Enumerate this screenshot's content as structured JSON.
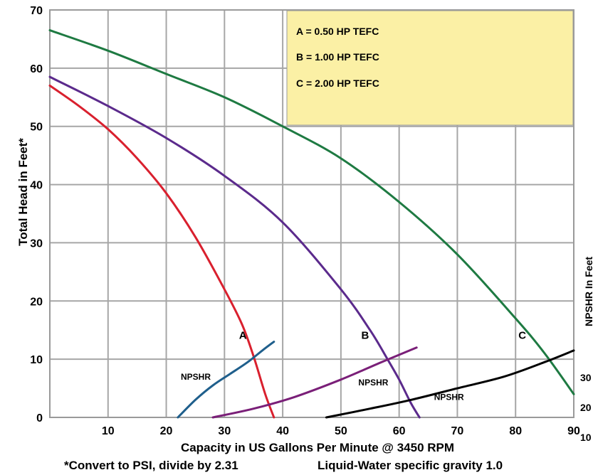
{
  "chart_data": {
    "type": "line",
    "title": "",
    "xlabel": "Capacity in US Gallons Per Minute @ 3450 RPM",
    "ylabel": "Total Head in Feet*",
    "right_ylabel": "NPSHR In Feet",
    "footnote_left": "*Convert to PSI, divide by 2.31",
    "footnote_right": "Liquid-Water specific gravity 1.0",
    "xlim": [
      0,
      90
    ],
    "ylim": [
      0,
      70
    ],
    "x_ticks": [
      "10",
      "20",
      "30",
      "40",
      "50",
      "60",
      "70",
      "80",
      "90"
    ],
    "y_ticks": [
      "0",
      "10",
      "20",
      "30",
      "40",
      "50",
      "60",
      "70"
    ],
    "right_ticks": [
      "30",
      "20",
      "10"
    ],
    "grid": true,
    "legend": {
      "placement": "top-right",
      "background": "#fbf0a5",
      "entries": [
        "A = 0.50 HP TEFC",
        "B = 1.00 HP TEFC",
        "C = 2.00 HP TEFC"
      ]
    },
    "series": [
      {
        "name": "A",
        "label": "A",
        "color": "#d9202e",
        "x": [
          0,
          5,
          10,
          15,
          20,
          25,
          30,
          33,
          35,
          37,
          38.5
        ],
        "y": [
          57,
          53.5,
          49.5,
          44.5,
          38.5,
          31,
          22,
          16,
          10.5,
          4,
          0
        ]
      },
      {
        "name": "B",
        "label": "B",
        "color": "#5b2a8c",
        "x": [
          0,
          10,
          20,
          30,
          40,
          50,
          55,
          58,
          60,
          62,
          63.5
        ],
        "y": [
          58.5,
          53.5,
          48,
          41.5,
          33.5,
          22,
          15,
          10,
          6.5,
          2.5,
          0
        ]
      },
      {
        "name": "C",
        "label": "C",
        "color": "#1e7a42",
        "x": [
          0,
          10,
          20,
          30,
          40,
          50,
          60,
          70,
          80,
          85,
          90
        ],
        "y": [
          66.5,
          63,
          59,
          55,
          50,
          44.5,
          37,
          28,
          17,
          11,
          4
        ]
      },
      {
        "name": "NPSHR A",
        "label": "NPSHR",
        "color": "#1f5f8c",
        "x": [
          22,
          25,
          28,
          31,
          34,
          36.5,
          38.5
        ],
        "y": [
          0,
          3,
          5.5,
          7.5,
          9.5,
          11.5,
          13
        ]
      },
      {
        "name": "NPSHR B",
        "label": "NPSHR",
        "color": "#7a1f78",
        "x": [
          28,
          35,
          42,
          50,
          57,
          63
        ],
        "y": [
          0,
          1.5,
          3.5,
          6.5,
          9.5,
          12
        ]
      },
      {
        "name": "NPSHR C",
        "label": "NPSHR",
        "color": "#000000",
        "x": [
          47.5,
          55,
          62,
          70,
          78,
          85,
          90
        ],
        "y": [
          0,
          1.5,
          3,
          5,
          7,
          9.5,
          11.5
        ]
      }
    ],
    "curve_labels": [
      {
        "text": "A",
        "x": 32.5,
        "y": 13.5
      },
      {
        "text": "B",
        "x": 53.5,
        "y": 13.5
      },
      {
        "text": "C",
        "x": 80.5,
        "y": 13.5
      }
    ],
    "npshr_labels": [
      {
        "text": "NPSHR",
        "x": 22.5,
        "y": 6.5
      },
      {
        "text": "NPSHR",
        "x": 53,
        "y": 5.5
      },
      {
        "text": "NPSHR",
        "x": 66,
        "y": 3
      }
    ]
  }
}
